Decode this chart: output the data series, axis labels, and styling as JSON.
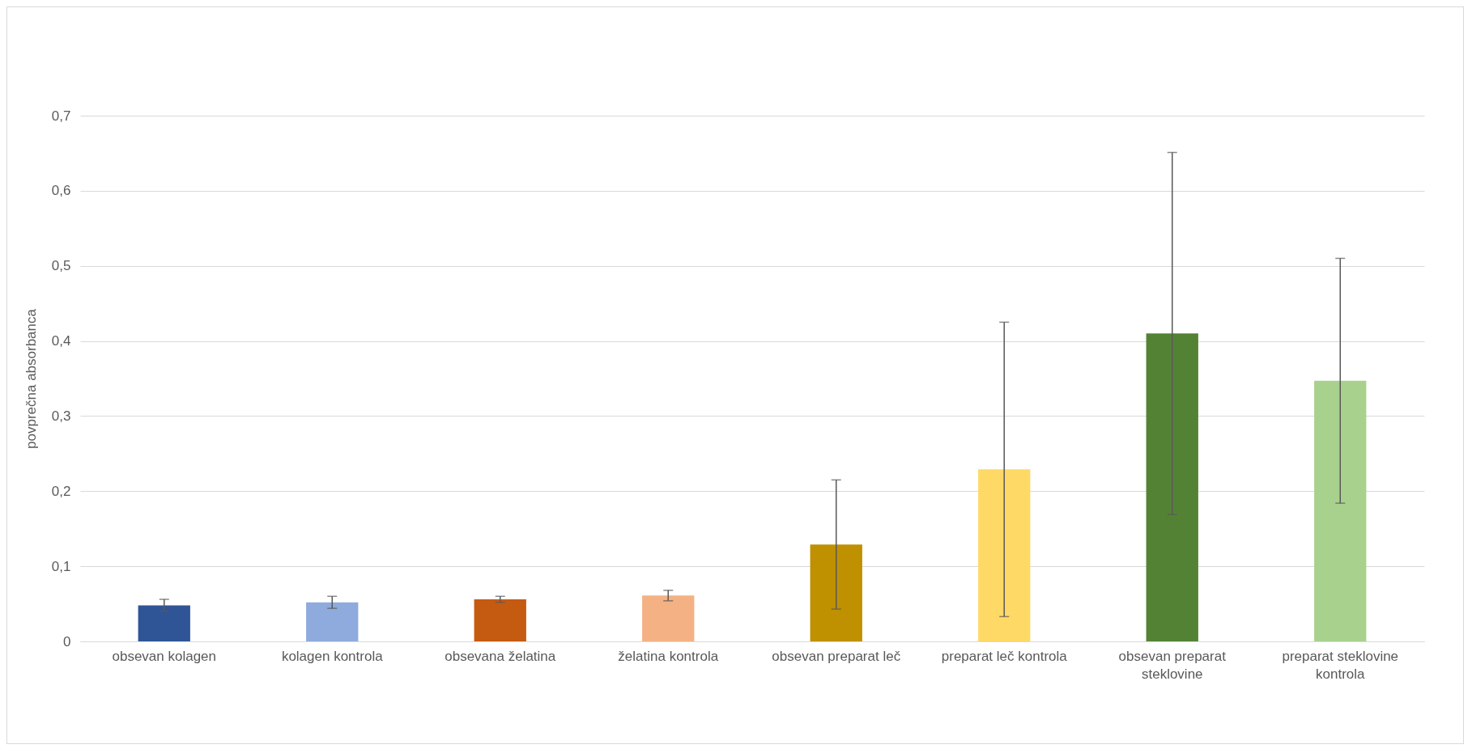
{
  "chart_data": {
    "type": "bar",
    "ylabel": "povprečna absorbanca",
    "categories": [
      "obsevan kolagen",
      "kolagen kontrola",
      "obsevana želatina",
      "želatina kontrola",
      "obsevan preparat leč",
      "preparat leč kontrola",
      "obsevan preparat steklovine",
      "preparat steklovine kontrola"
    ],
    "values": [
      0.048,
      0.052,
      0.056,
      0.061,
      0.129,
      0.229,
      0.41,
      0.347
    ],
    "errors": [
      0.008,
      0.008,
      0.004,
      0.007,
      0.086,
      0.196,
      0.241,
      0.163
    ],
    "colors": [
      "#2f5597",
      "#8faadc",
      "#c55a11",
      "#f4b183",
      "#bf9000",
      "#ffd966",
      "#548235",
      "#a9d18e"
    ],
    "ylim": [
      0,
      0.7
    ],
    "yticks": [
      0,
      {
        "value": 0.1,
        "label": "0,1"
      },
      {
        "value": 0.2,
        "label": "0,2"
      },
      {
        "value": 0.3,
        "label": "0,3"
      },
      {
        "value": 0.4,
        "label": "0,4"
      },
      {
        "value": 0.5,
        "label": "0,5"
      },
      {
        "value": 0.6,
        "label": "0,6"
      },
      {
        "value": 0.7,
        "label": "0,7"
      }
    ],
    "grid": "y"
  }
}
